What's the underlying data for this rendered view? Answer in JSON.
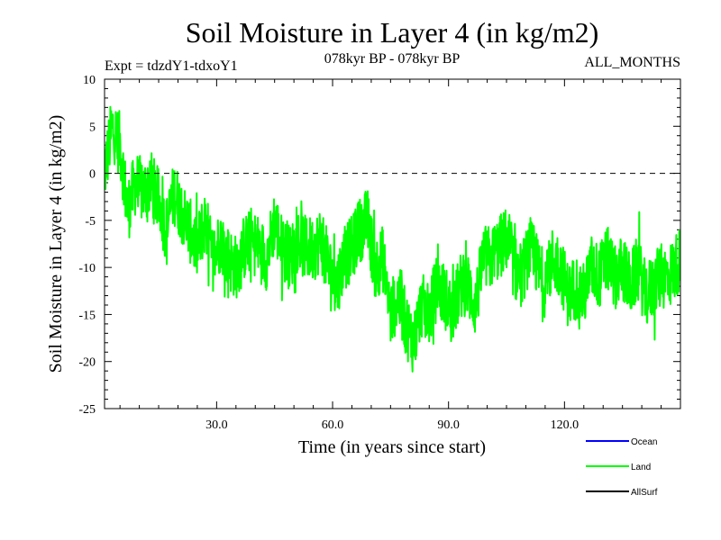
{
  "chart_data": {
    "type": "line",
    "title": "Soil Moisture in Layer 4 (in kg/m2)",
    "subtitle_left": "Expt = tdzdY1-tdxoY1",
    "subtitle_center": "078kyr BP - 078kyr BP",
    "subtitle_right": "ALL_MONTHS",
    "xlabel": "Time (in years since start)",
    "ylabel": "Soil Moisture in Layer 4 (in kg/m2)",
    "xlim": [
      1,
      150
    ],
    "ylim": [
      -25,
      10
    ],
    "x_ticks": [
      30,
      60,
      90,
      120
    ],
    "x_tick_labels": [
      "30.0",
      "60.0",
      "90.0",
      "120.0"
    ],
    "y_ticks": [
      10,
      5,
      0,
      -5,
      -10,
      -15,
      -20,
      -25
    ],
    "y_tick_labels": [
      "10",
      "5",
      "0",
      "-5",
      "-10",
      "-15",
      "-20",
      "-25"
    ],
    "zero_line": 0,
    "legend": [
      {
        "name": "Ocean",
        "color": "#0000ff"
      },
      {
        "name": "Land",
        "color": "#00ff00"
      },
      {
        "name": "AllSurf",
        "color": "#000000"
      }
    ],
    "series": [
      {
        "name": "Land",
        "color": "#00ff00",
        "sampling": "annual anchors (actual data plotted monthly, high-frequency variability)",
        "x": [
          1,
          3,
          5,
          7,
          9,
          11,
          13,
          15,
          17,
          19,
          21,
          23,
          25,
          27,
          29,
          31,
          33,
          35,
          37,
          39,
          41,
          43,
          45,
          47,
          49,
          51,
          53,
          55,
          57,
          59,
          61,
          63,
          65,
          67,
          69,
          71,
          73,
          75,
          77,
          79,
          81,
          83,
          85,
          87,
          89,
          91,
          93,
          95,
          97,
          99,
          101,
          103,
          105,
          107,
          109,
          111,
          113,
          115,
          117,
          119,
          121,
          123,
          125,
          127,
          129,
          131,
          133,
          135,
          137,
          139,
          141,
          143,
          145,
          147,
          150
        ],
        "y": [
          0,
          5,
          3,
          -4,
          -1,
          -2,
          -1,
          -3,
          -6,
          -2,
          -4,
          -6,
          -8,
          -5,
          -9,
          -7,
          -9,
          -10,
          -8,
          -7,
          -8,
          -9,
          -5,
          -8,
          -9,
          -7,
          -8,
          -8,
          -7,
          -10,
          -12,
          -9,
          -8,
          -6,
          -5,
          -10,
          -9,
          -15,
          -13,
          -16,
          -18,
          -14,
          -15,
          -12,
          -13,
          -15,
          -12,
          -12,
          -14,
          -9,
          -9,
          -8,
          -7,
          -10,
          -11,
          -8,
          -10,
          -12,
          -9,
          -10,
          -13,
          -12,
          -13,
          -10,
          -11,
          -9,
          -11,
          -10,
          -12,
          -10,
          -13,
          -12,
          -11,
          -11,
          -9
        ]
      },
      {
        "name": "Ocean",
        "color": "#0000ff",
        "x": [],
        "y": []
      },
      {
        "name": "AllSurf",
        "color": "#000000",
        "x": [],
        "y": []
      }
    ]
  }
}
